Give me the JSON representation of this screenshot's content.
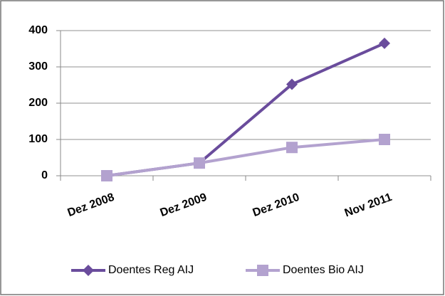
{
  "chart_data": {
    "type": "line",
    "categories": [
      "Dez 2008",
      "Dez 2009",
      "Dez 2010",
      "Nov 2011"
    ],
    "series": [
      {
        "name": "Doentes Reg AIJ",
        "color": "#6a4c9c",
        "values": [
          0,
          35,
          252,
          365
        ]
      },
      {
        "name": "Doentes Bio AIJ",
        "color": "#b3a2cf",
        "values": [
          0,
          35,
          78,
          100
        ]
      }
    ],
    "ylim": [
      0,
      400
    ],
    "yticks": [
      0,
      100,
      200,
      300,
      400
    ],
    "grid": true,
    "legend": "bottom"
  }
}
